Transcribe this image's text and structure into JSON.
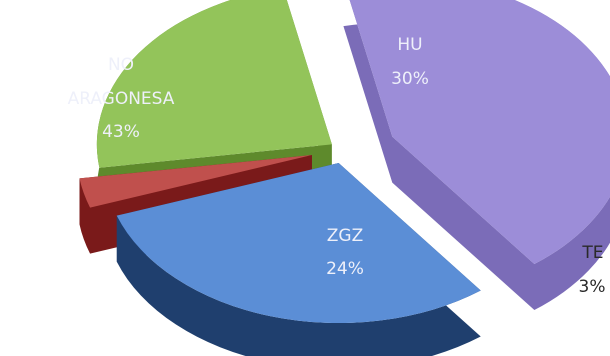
{
  "chart_data": {
    "type": "pie",
    "title": "",
    "categories": [
      "NO ARAGONESA",
      "HU",
      "TE",
      "ZGZ"
    ],
    "values": [
      43,
      30,
      3,
      24
    ],
    "unit": "%",
    "slices": [
      {
        "name_lines": [
          "NO",
          "ARAGONESA"
        ],
        "value_label": "43%",
        "value": 43,
        "color": "#9C8DD8",
        "side_color": "#7B6CB8"
      },
      {
        "name_lines": [
          "HU"
        ],
        "value_label": "30%",
        "value": 30,
        "color": "#5B8ED6",
        "side_color": "#1F3F6E"
      },
      {
        "name_lines": [
          "TE"
        ],
        "value_label": "3%",
        "value": 3,
        "color": "#C0504D",
        "side_color": "#7A1A1A"
      },
      {
        "name_lines": [
          "ZGZ"
        ],
        "value_label": "24%",
        "value": 24,
        "color": "#93C45A",
        "side_color": "#5E8A2C"
      }
    ],
    "style": "3d-exploded",
    "legend": "none"
  }
}
